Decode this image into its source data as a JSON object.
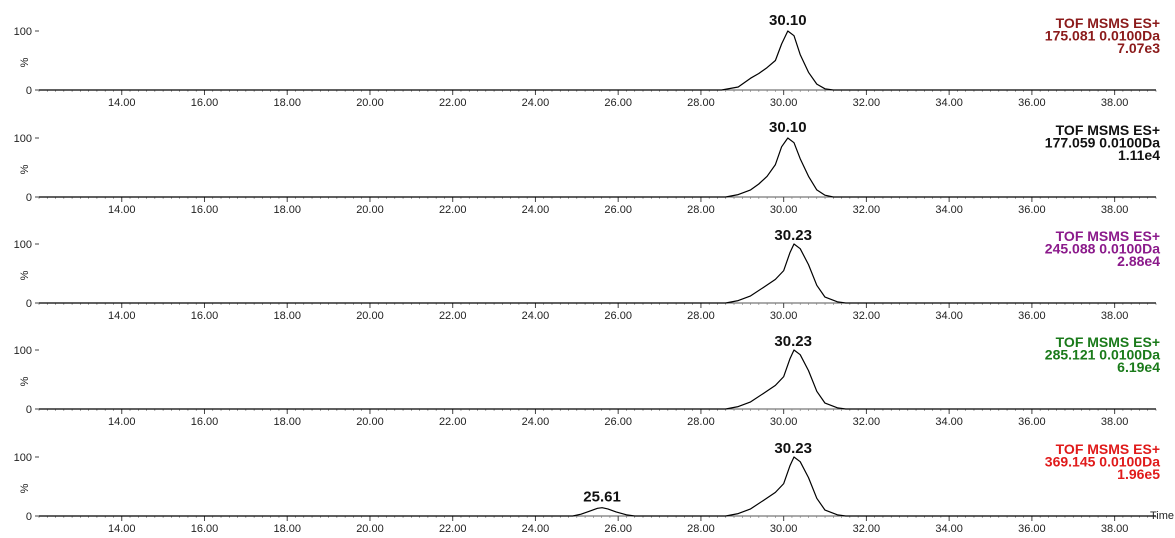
{
  "chart_data": {
    "type": "line",
    "x_axis": {
      "ticks": [
        "14.00",
        "16.00",
        "18.00",
        "20.00",
        "22.00",
        "24.00",
        "26.00",
        "28.00",
        "30.00",
        "32.00",
        "34.00",
        "36.00",
        "38.00"
      ],
      "label": "Time",
      "xlim": [
        12.0,
        39.0
      ]
    },
    "y_axis": {
      "ticks": [
        "0",
        "100"
      ],
      "label": "%",
      "ylim": [
        0,
        100
      ]
    },
    "panels": [
      {
        "info": [
          "TOF MSMS ES+",
          "175.081 0.0100Da",
          "7.07e3"
        ],
        "color": "#8b1a1a",
        "peaks": [
          {
            "label": "30.10",
            "x": 30.1
          }
        ],
        "series": {
          "x": [
            12.0,
            28.5,
            28.9,
            29.2,
            29.4,
            29.6,
            29.8,
            29.95,
            30.1,
            30.25,
            30.4,
            30.6,
            30.8,
            31.0,
            31.2,
            39.0
          ],
          "y": [
            0,
            0,
            5,
            20,
            28,
            38,
            50,
            78,
            100,
            92,
            60,
            30,
            10,
            2,
            0,
            0
          ]
        }
      },
      {
        "info": [
          "TOF MSMS ES+",
          "177.059 0.0100Da",
          "1.11e4"
        ],
        "color": "#111111",
        "peaks": [
          {
            "label": "30.10",
            "x": 30.1
          }
        ],
        "series": {
          "x": [
            12.0,
            28.6,
            28.9,
            29.2,
            29.4,
            29.6,
            29.8,
            29.95,
            30.1,
            30.25,
            30.4,
            30.6,
            30.8,
            31.0,
            31.2,
            39.0
          ],
          "y": [
            0,
            0,
            4,
            12,
            22,
            35,
            55,
            85,
            100,
            92,
            65,
            35,
            12,
            3,
            0,
            0
          ]
        }
      },
      {
        "info": [
          "TOF MSMS ES+",
          "245.088 0.0100Da",
          "2.88e4"
        ],
        "color": "#8b1a8b",
        "peaks": [
          {
            "label": "30.23",
            "x": 30.23
          }
        ],
        "series": {
          "x": [
            12.0,
            28.6,
            28.9,
            29.2,
            29.5,
            29.8,
            30.0,
            30.15,
            30.25,
            30.4,
            30.6,
            30.8,
            31.0,
            31.3,
            31.5,
            39.0
          ],
          "y": [
            0,
            0,
            4,
            12,
            26,
            40,
            55,
            85,
            100,
            92,
            65,
            30,
            10,
            2,
            0,
            0
          ]
        }
      },
      {
        "info": [
          "TOF MSMS ES+",
          "285.121 0.0100Da",
          "6.19e4"
        ],
        "color": "#1a7a1a",
        "peaks": [
          {
            "label": "30.23",
            "x": 30.23
          }
        ],
        "series": {
          "x": [
            12.0,
            28.6,
            28.9,
            29.2,
            29.5,
            29.8,
            30.0,
            30.15,
            30.25,
            30.4,
            30.6,
            30.8,
            31.0,
            31.3,
            31.5,
            39.0
          ],
          "y": [
            0,
            0,
            4,
            12,
            26,
            40,
            55,
            85,
            100,
            92,
            65,
            30,
            10,
            2,
            0,
            0
          ]
        }
      },
      {
        "info": [
          "TOF MSMS ES+",
          "369.145 0.0100Da",
          "1.96e5"
        ],
        "color": "#e01a1a",
        "peaks": [
          {
            "label": "25.61",
            "x": 25.61
          },
          {
            "label": "30.23",
            "x": 30.23
          }
        ],
        "series": {
          "x": [
            12.0,
            24.9,
            25.1,
            25.3,
            25.5,
            25.61,
            25.75,
            25.95,
            26.2,
            26.4,
            28.6,
            28.9,
            29.2,
            29.5,
            29.8,
            30.0,
            30.15,
            30.25,
            30.4,
            30.6,
            30.8,
            31.0,
            31.3,
            31.5,
            39.0
          ],
          "y": [
            0,
            0,
            3,
            8,
            13,
            14,
            12,
            7,
            2,
            0,
            0,
            4,
            12,
            26,
            40,
            55,
            85,
            100,
            92,
            65,
            30,
            10,
            2,
            0,
            0
          ]
        }
      }
    ]
  }
}
